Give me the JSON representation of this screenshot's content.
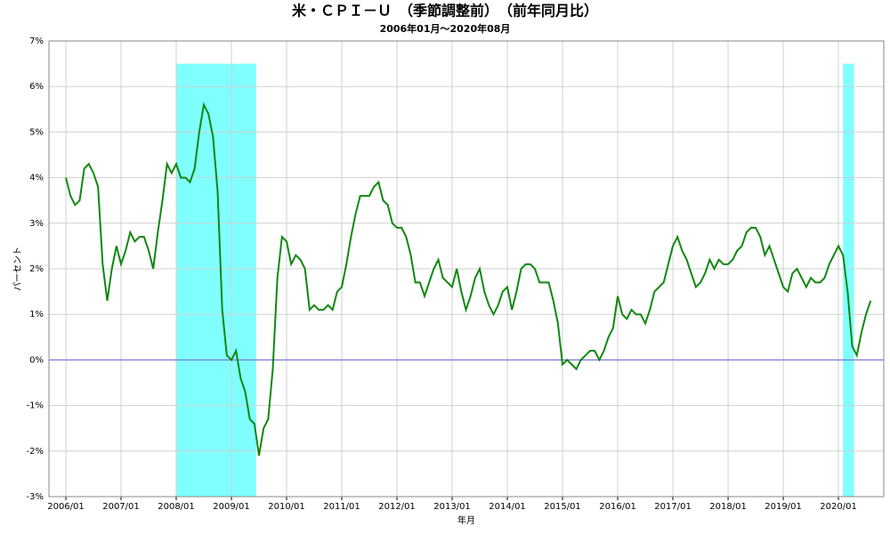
{
  "chart_data": {
    "type": "line",
    "title": "米・ＣＰＩ－Ｕ　（季節調整前）　（前年同月比）",
    "subtitle": "2006年01月～2020年08月",
    "xlabel": "年月",
    "ylabel": "パーセント",
    "x": [
      "2006/01",
      "2006/02",
      "2006/03",
      "2006/04",
      "2006/05",
      "2006/06",
      "2006/07",
      "2006/08",
      "2006/09",
      "2006/10",
      "2006/11",
      "2006/12",
      "2007/01",
      "2007/02",
      "2007/03",
      "2007/04",
      "2007/05",
      "2007/06",
      "2007/07",
      "2007/08",
      "2007/09",
      "2007/10",
      "2007/11",
      "2007/12",
      "2008/01",
      "2008/02",
      "2008/03",
      "2008/04",
      "2008/05",
      "2008/06",
      "2008/07",
      "2008/08",
      "2008/09",
      "2008/10",
      "2008/11",
      "2008/12",
      "2009/01",
      "2009/02",
      "2009/03",
      "2009/04",
      "2009/05",
      "2009/06",
      "2009/07",
      "2009/08",
      "2009/09",
      "2009/10",
      "2009/11",
      "2009/12",
      "2010/01",
      "2010/02",
      "2010/03",
      "2010/04",
      "2010/05",
      "2010/06",
      "2010/07",
      "2010/08",
      "2010/09",
      "2010/10",
      "2010/11",
      "2010/12",
      "2011/01",
      "2011/02",
      "2011/03",
      "2011/04",
      "2011/05",
      "2011/06",
      "2011/07",
      "2011/08",
      "2011/09",
      "2011/10",
      "2011/11",
      "2011/12",
      "2012/01",
      "2012/02",
      "2012/03",
      "2012/04",
      "2012/05",
      "2012/06",
      "2012/07",
      "2012/08",
      "2012/09",
      "2012/10",
      "2012/11",
      "2012/12",
      "2013/01",
      "2013/02",
      "2013/03",
      "2013/04",
      "2013/05",
      "2013/06",
      "2013/07",
      "2013/08",
      "2013/09",
      "2013/10",
      "2013/11",
      "2013/12",
      "2014/01",
      "2014/02",
      "2014/03",
      "2014/04",
      "2014/05",
      "2014/06",
      "2014/07",
      "2014/08",
      "2014/09",
      "2014/10",
      "2014/11",
      "2014/12",
      "2015/01",
      "2015/02",
      "2015/03",
      "2015/04",
      "2015/05",
      "2015/06",
      "2015/07",
      "2015/08",
      "2015/09",
      "2015/10",
      "2015/11",
      "2015/12",
      "2016/01",
      "2016/02",
      "2016/03",
      "2016/04",
      "2016/05",
      "2016/06",
      "2016/07",
      "2016/08",
      "2016/09",
      "2016/10",
      "2016/11",
      "2016/12",
      "2017/01",
      "2017/02",
      "2017/03",
      "2017/04",
      "2017/05",
      "2017/06",
      "2017/07",
      "2017/08",
      "2017/09",
      "2017/10",
      "2017/11",
      "2017/12",
      "2018/01",
      "2018/02",
      "2018/03",
      "2018/04",
      "2018/05",
      "2018/06",
      "2018/07",
      "2018/08",
      "2018/09",
      "2018/10",
      "2018/11",
      "2018/12",
      "2019/01",
      "2019/02",
      "2019/03",
      "2019/04",
      "2019/05",
      "2019/06",
      "2019/07",
      "2019/08",
      "2019/09",
      "2019/10",
      "2019/11",
      "2019/12",
      "2020/01",
      "2020/02",
      "2020/03",
      "2020/04",
      "2020/05",
      "2020/06",
      "2020/07",
      "2020/08"
    ],
    "series": [
      {
        "color": "#118811",
        "values": [
          4.0,
          3.6,
          3.4,
          3.5,
          4.2,
          4.3,
          4.1,
          3.8,
          2.1,
          1.3,
          2.0,
          2.5,
          2.1,
          2.4,
          2.8,
          2.6,
          2.7,
          2.7,
          2.4,
          2.0,
          2.8,
          3.5,
          4.3,
          4.1,
          4.3,
          4.0,
          4.0,
          3.9,
          4.2,
          5.0,
          5.6,
          5.4,
          4.9,
          3.7,
          1.1,
          0.1,
          0.0,
          0.2,
          -0.4,
          -0.7,
          -1.3,
          -1.4,
          -2.1,
          -1.5,
          -1.3,
          -0.2,
          1.8,
          2.7,
          2.6,
          2.1,
          2.3,
          2.2,
          2.0,
          1.1,
          1.2,
          1.1,
          1.1,
          1.2,
          1.1,
          1.5,
          1.6,
          2.1,
          2.7,
          3.2,
          3.6,
          3.6,
          3.6,
          3.8,
          3.9,
          3.5,
          3.4,
          3.0,
          2.9,
          2.9,
          2.7,
          2.3,
          1.7,
          1.7,
          1.4,
          1.7,
          2.0,
          2.2,
          1.8,
          1.7,
          1.6,
          2.0,
          1.5,
          1.1,
          1.4,
          1.8,
          2.0,
          1.5,
          1.2,
          1.0,
          1.2,
          1.5,
          1.6,
          1.1,
          1.5,
          2.0,
          2.1,
          2.1,
          2.0,
          1.7,
          1.7,
          1.7,
          1.3,
          0.8,
          -0.1,
          0.0,
          -0.1,
          -0.2,
          0.0,
          0.1,
          0.2,
          0.2,
          0.0,
          0.2,
          0.5,
          0.7,
          1.4,
          1.0,
          0.9,
          1.1,
          1.0,
          1.0,
          0.8,
          1.1,
          1.5,
          1.6,
          1.7,
          2.1,
          2.5,
          2.7,
          2.4,
          2.2,
          1.9,
          1.6,
          1.7,
          1.9,
          2.2,
          2.0,
          2.2,
          2.1,
          2.1,
          2.2,
          2.4,
          2.5,
          2.8,
          2.9,
          2.9,
          2.7,
          2.3,
          2.5,
          2.2,
          1.9,
          1.6,
          1.5,
          1.9,
          2.0,
          1.8,
          1.6,
          1.8,
          1.7,
          1.7,
          1.8,
          2.1,
          2.3,
          2.5,
          2.3,
          1.5,
          0.3,
          0.1,
          0.6,
          1.0,
          1.3
        ]
      }
    ],
    "xticks": [
      "2006/01",
      "2007/01",
      "2008/01",
      "2009/01",
      "2010/01",
      "2011/01",
      "2012/01",
      "2013/01",
      "2014/01",
      "2015/01",
      "2016/01",
      "2017/01",
      "2018/01",
      "2019/01",
      "2020/01"
    ],
    "ylim": [
      -3,
      7
    ],
    "yticks": [
      {
        "value": -3,
        "label": "-3%"
      },
      {
        "value": -2,
        "label": "-2%"
      },
      {
        "value": -1,
        "label": "-1%"
      },
      {
        "value": 0,
        "label": "0%"
      },
      {
        "value": 1,
        "label": "1%"
      },
      {
        "value": 2,
        "label": "2%"
      },
      {
        "value": 3,
        "label": "3%"
      },
      {
        "value": 4,
        "label": "4%"
      },
      {
        "value": 5,
        "label": "5%"
      },
      {
        "value": 6,
        "label": "6%"
      },
      {
        "value": 7,
        "label": "7%"
      }
    ],
    "grid": true,
    "zero_line_color": "#6666dd",
    "shaded_color": "#80ffff",
    "shaded_top": 6.5,
    "shaded": [
      [
        "2008/01",
        "2009/06"
      ],
      [
        "2020/02",
        "2020/04"
      ]
    ]
  }
}
